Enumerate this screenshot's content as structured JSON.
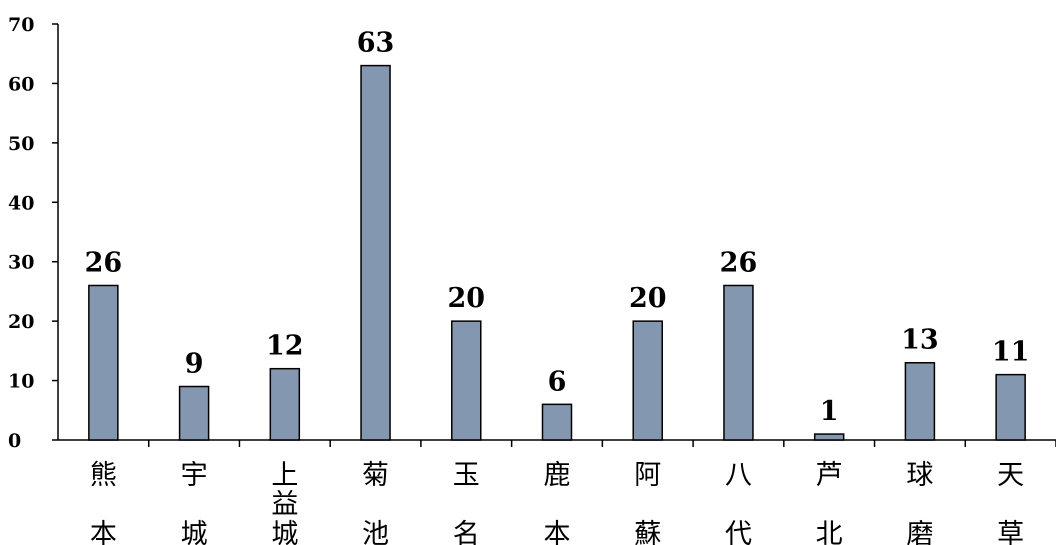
{
  "chart_data": {
    "type": "bar",
    "title": "",
    "xlabel": "",
    "ylabel": "",
    "categories": [
      "熊本",
      "宇城",
      "上益城",
      "菊池",
      "玉名",
      "鹿本",
      "阿蘇",
      "八代",
      "芦北",
      "球磨",
      "天草"
    ],
    "values": [
      26,
      9,
      12,
      63,
      20,
      6,
      20,
      26,
      1,
      13,
      11
    ],
    "ylim": [
      0,
      70
    ],
    "yticks": [
      0,
      10,
      20,
      30,
      40,
      50,
      60,
      70
    ],
    "grid": false,
    "legend": "none",
    "bar_color": "#8497b0"
  }
}
